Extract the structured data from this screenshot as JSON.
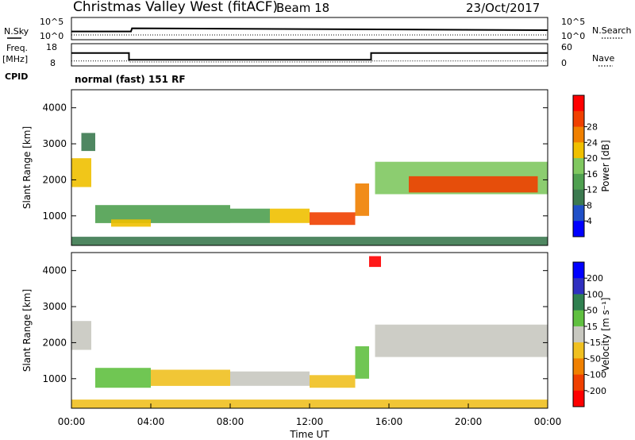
{
  "header": {
    "station": "Christmas Valley West (fitACF)",
    "beam": "Beam 18",
    "date": "23/Oct/2017"
  },
  "left_labels": {
    "nsky": "N.Sky",
    "freq": "Freq.",
    "freq_unit": "[MHz]",
    "cpid": "CPID"
  },
  "right_labels": {
    "nsearch": "N.Search",
    "nave": "Nave"
  },
  "cpid_text": "normal (fast) 151 RF",
  "colors": {
    "power_scale": [
      "#0000ff",
      "#2050c8",
      "#3c7a50",
      "#4fa050",
      "#80c860",
      "#f0c000",
      "#f08000",
      "#f04000",
      "#ff0000"
    ],
    "velocity_scale": [
      "#0000ff",
      "#3030c0",
      "#308050",
      "#60c040",
      "#c8c8c0",
      "#f0c020",
      "#f08000",
      "#f04000",
      "#ff0000"
    ]
  },
  "chart_data": [
    {
      "type": "line",
      "panel": "noise",
      "x_unit": "hours UT",
      "left_axis": {
        "ticks": [
          "10^5",
          "10^0"
        ]
      },
      "right_axis": {
        "ticks": [
          "10^5",
          "10^0"
        ]
      },
      "series": [
        {
          "name": "N.Sky",
          "x": [
            0,
            3,
            3.05,
            24
          ],
          "y": [
            1.6,
            1.6,
            2.6,
            2.0
          ]
        }
      ]
    },
    {
      "type": "line",
      "panel": "frequency",
      "x_unit": "hours UT",
      "left_axis": {
        "ticks": [
          "18",
          "8"
        ]
      },
      "right_axis": {
        "ticks": [
          "60",
          "0"
        ]
      },
      "series": [
        {
          "name": "Freq.",
          "x": [
            0,
            2.9,
            2.9,
            15.1,
            15.1,
            24
          ],
          "y": [
            14,
            14,
            10.2,
            10.2,
            14,
            14
          ]
        }
      ]
    },
    {
      "type": "heatmap",
      "panel": "power",
      "xlabel": "",
      "ylabel": "Slant Range [km]",
      "xlim": [
        0,
        24
      ],
      "ylim": [
        180,
        4500
      ],
      "yticks": [
        "1000",
        "2000",
        "3000",
        "4000"
      ],
      "colorbar": {
        "label": "Power [dB]",
        "ticks": [
          "4",
          "8",
          "12",
          "16",
          "20",
          "24",
          "28"
        ],
        "range": [
          0,
          32
        ]
      },
      "regions": [
        {
          "x0": 0.0,
          "x1": 1.0,
          "y0": 1800,
          "y1": 2600,
          "value": 18
        },
        {
          "x0": 0.5,
          "x1": 1.2,
          "y0": 2800,
          "y1": 3300,
          "value": 10
        },
        {
          "x0": 1.2,
          "x1": 8.0,
          "y0": 800,
          "y1": 1300,
          "value": 14
        },
        {
          "x0": 2.0,
          "x1": 4.0,
          "y0": 700,
          "y1": 900,
          "value": 20
        },
        {
          "x0": 8.0,
          "x1": 10.0,
          "y0": 800,
          "y1": 1200,
          "value": 13
        },
        {
          "x0": 10.0,
          "x1": 12.0,
          "y0": 800,
          "y1": 1200,
          "value": 18
        },
        {
          "x0": 12.0,
          "x1": 14.3,
          "y0": 750,
          "y1": 1100,
          "value": 28
        },
        {
          "x0": 14.3,
          "x1": 15.0,
          "y0": 1000,
          "y1": 1900,
          "value": 24
        },
        {
          "x0": 15.3,
          "x1": 24.0,
          "y0": 1600,
          "y1": 2500,
          "value": 16
        },
        {
          "x0": 17.0,
          "x1": 23.5,
          "y0": 1650,
          "y1": 2100,
          "value": 28
        },
        {
          "x0": 0.0,
          "x1": 24.0,
          "y0": 180,
          "y1": 420,
          "value": 10
        }
      ]
    },
    {
      "type": "heatmap",
      "panel": "velocity",
      "xlabel": "Time UT",
      "ylabel": "Slant Range [km]",
      "xlim": [
        0,
        24
      ],
      "ylim": [
        180,
        4500
      ],
      "xticks": [
        "00:00",
        "04:00",
        "08:00",
        "12:00",
        "16:00",
        "20:00",
        "00:00"
      ],
      "yticks": [
        "1000",
        "2000",
        "3000",
        "4000"
      ],
      "colorbar": {
        "label": "Velocity [m s⁻¹]",
        "ticks": [
          "200",
          "100",
          "50",
          "15",
          "-15",
          "-50",
          "-100",
          "-200"
        ],
        "range": [
          -250,
          250
        ]
      },
      "regions": [
        {
          "x0": 0.0,
          "x1": 1.0,
          "y0": 1800,
          "y1": 2600,
          "value": 0
        },
        {
          "x0": 1.2,
          "x1": 4.0,
          "y0": 750,
          "y1": 1300,
          "value": 30
        },
        {
          "x0": 4.0,
          "x1": 8.0,
          "y0": 800,
          "y1": 1250,
          "value": -30
        },
        {
          "x0": 8.0,
          "x1": 12.0,
          "y0": 800,
          "y1": 1200,
          "value": 0
        },
        {
          "x0": 12.0,
          "x1": 14.3,
          "y0": 750,
          "y1": 1100,
          "value": -30
        },
        {
          "x0": 14.3,
          "x1": 15.0,
          "y0": 1000,
          "y1": 1900,
          "value": 30
        },
        {
          "x0": 15.0,
          "x1": 15.6,
          "y0": 4100,
          "y1": 4400,
          "value": -200
        },
        {
          "x0": 15.3,
          "x1": 24.0,
          "y0": 1600,
          "y1": 2500,
          "value": 0
        },
        {
          "x0": 0.0,
          "x1": 24.0,
          "y0": 180,
          "y1": 420,
          "value": -30
        }
      ]
    }
  ]
}
